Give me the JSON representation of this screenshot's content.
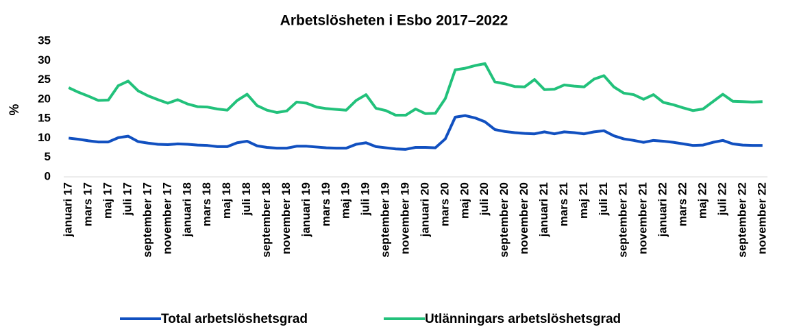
{
  "chart_data": {
    "type": "line",
    "title": "Arbetslösheten i Esbo 2017–2022",
    "y_label": "%",
    "categories": [
      "januari 17",
      null,
      "mars 17",
      null,
      "maj 17",
      null,
      "juli 17",
      null,
      "september 17",
      null,
      "november 17",
      null,
      "januari 18",
      null,
      "mars 18",
      null,
      "maj 18",
      null,
      "juli 18",
      null,
      "september 18",
      null,
      "november 18",
      null,
      "januari 19",
      null,
      "mars 19",
      null,
      "maj 19",
      null,
      "juli 19",
      null,
      "september 19",
      null,
      "november 19",
      null,
      "januari 20",
      null,
      "mars 20",
      null,
      "maj 20",
      null,
      "juli 20",
      null,
      "september 20",
      null,
      "november 20",
      null,
      "januari 21",
      null,
      "mars 21",
      null,
      "maj 21",
      null,
      "juli 21",
      null,
      "september 21",
      null,
      "november 21",
      null,
      "januari 22",
      null,
      "mars 22",
      null,
      "maj 22",
      null,
      "juli 22",
      null,
      "september 22",
      null,
      "november 22"
    ],
    "series": [
      {
        "name": "Total arbetslöshetsgrad",
        "color": "#1150c0",
        "values": [
          10.0,
          9.7,
          9.3,
          9.0,
          9.0,
          10.1,
          10.5,
          9.1,
          8.7,
          8.4,
          8.3,
          8.5,
          8.4,
          8.2,
          8.1,
          7.8,
          7.8,
          8.8,
          9.2,
          8.0,
          7.6,
          7.4,
          7.4,
          7.9,
          7.9,
          7.7,
          7.5,
          7.4,
          7.4,
          8.4,
          8.8,
          7.8,
          7.5,
          7.2,
          7.1,
          7.6,
          7.6,
          7.5,
          9.8,
          15.4,
          15.8,
          15.2,
          14.2,
          12.2,
          11.7,
          11.4,
          11.2,
          11.1,
          11.6,
          11.1,
          11.6,
          11.4,
          11.1,
          11.6,
          11.9,
          10.6,
          9.8,
          9.4,
          8.9,
          9.4,
          9.2,
          8.9,
          8.5,
          8.1,
          8.2,
          8.9,
          9.4,
          8.5,
          8.2,
          8.1,
          8.1
        ]
      },
      {
        "name": "Utlänningars arbetslöshetsgrad",
        "color": "#22c17b",
        "values": [
          23.0,
          21.8,
          20.8,
          19.7,
          19.8,
          23.5,
          24.7,
          22.2,
          20.9,
          19.9,
          19.0,
          19.9,
          18.8,
          18.1,
          18.0,
          17.5,
          17.2,
          19.7,
          21.3,
          18.4,
          17.2,
          16.6,
          17.0,
          19.3,
          19.0,
          18.0,
          17.6,
          17.4,
          17.2,
          19.7,
          21.2,
          17.7,
          17.1,
          15.9,
          15.9,
          17.5,
          16.3,
          16.4,
          20.2,
          27.6,
          28.0,
          28.7,
          29.2,
          24.5,
          24.0,
          23.3,
          23.2,
          25.1,
          22.5,
          22.6,
          23.7,
          23.4,
          23.2,
          25.2,
          26.1,
          23.2,
          21.6,
          21.2,
          20.0,
          21.2,
          19.2,
          18.6,
          17.8,
          17.1,
          17.5,
          19.4,
          21.3,
          19.5,
          19.4,
          19.3,
          19.4
        ]
      }
    ],
    "ylim": [
      0,
      35
    ],
    "yticks": [
      0,
      5,
      10,
      15,
      20,
      25,
      30,
      35
    ],
    "grid": false,
    "legend": "bottom"
  }
}
